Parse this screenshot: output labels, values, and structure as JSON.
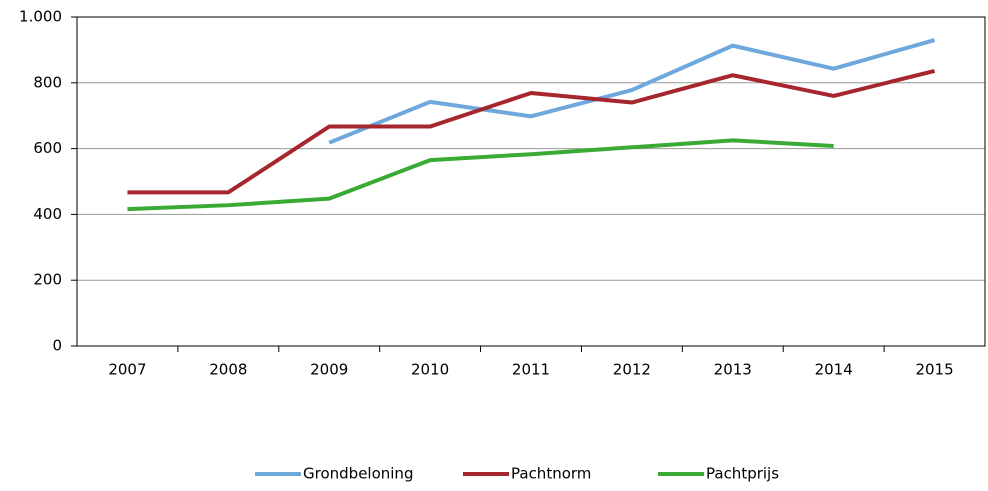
{
  "chart_data": {
    "type": "line",
    "categories": [
      "2007",
      "2008",
      "2009",
      "2010",
      "2011",
      "2012",
      "2013",
      "2014",
      "2015"
    ],
    "series": [
      {
        "name": "Grondbeloning",
        "color": "#6fa8dc",
        "values": [
          null,
          null,
          618,
          742,
          698,
          778,
          913,
          843,
          930
        ]
      },
      {
        "name": "Pachtnorm",
        "color": "#a5262c",
        "values": [
          467,
          467,
          667,
          667,
          769,
          740,
          823,
          760,
          836
        ]
      },
      {
        "name": "Pachtprijs",
        "color": "#3aaa35",
        "values": [
          416,
          428,
          448,
          565,
          583,
          604,
          625,
          608,
          null
        ]
      }
    ],
    "ylim": [
      0,
      1000
    ],
    "yticks": [
      0,
      200,
      400,
      600,
      800,
      {
        "value": 1000,
        "label": "1.000"
      }
    ],
    "grid": true,
    "legend": "bottom"
  }
}
